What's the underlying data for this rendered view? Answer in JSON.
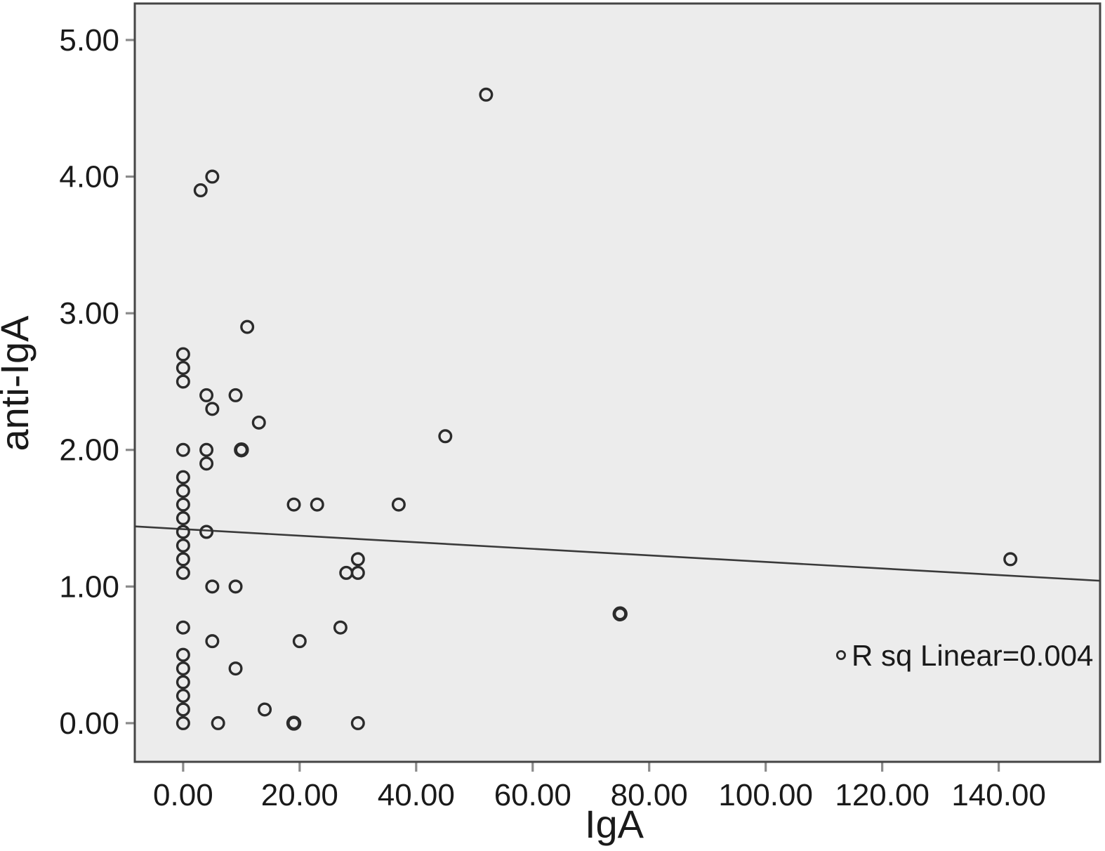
{
  "figure": {
    "kind": "SPSS-style scatterplot",
    "background": "#ffffff"
  },
  "chart_data": {
    "type": "scatter",
    "title": "",
    "xlabel": "IgA",
    "ylabel": "anti-IgA",
    "xlim": [
      -8.3,
      157.4
    ],
    "ylim": [
      -0.283,
      5.267
    ],
    "x_ticks": [
      0,
      20,
      40,
      60,
      80,
      100,
      120,
      140
    ],
    "x_tick_labels": [
      "0.00",
      "20.00",
      "40.00",
      "60.00",
      "80.00",
      "100.00",
      "120.00",
      "140.00"
    ],
    "y_ticks": [
      0,
      1,
      2,
      3,
      4,
      5
    ],
    "y_tick_labels": [
      "0.00",
      "1.00",
      "2.00",
      "3.00",
      "4.00",
      "5.00"
    ],
    "grid": false,
    "marker": "open-circle",
    "points": [
      [
        0,
        2.7
      ],
      [
        0,
        2.6
      ],
      [
        0,
        2.5
      ],
      [
        0,
        2.0
      ],
      [
        0,
        1.8
      ],
      [
        0,
        1.7
      ],
      [
        0,
        1.6
      ],
      [
        0,
        1.5
      ],
      [
        0,
        1.4
      ],
      [
        0,
        1.3
      ],
      [
        0,
        1.2
      ],
      [
        0,
        1.1
      ],
      [
        0,
        0.7
      ],
      [
        0,
        0.5
      ],
      [
        0,
        0.4
      ],
      [
        0,
        0.3
      ],
      [
        0,
        0.2
      ],
      [
        0,
        0.1
      ],
      [
        0,
        0.0
      ],
      [
        3,
        3.9
      ],
      [
        5,
        4.0
      ],
      [
        52,
        4.6
      ],
      [
        11,
        2.9
      ],
      [
        4,
        2.4
      ],
      [
        9,
        2.4
      ],
      [
        5,
        2.3
      ],
      [
        13,
        2.2
      ],
      [
        45,
        2.1
      ],
      [
        4,
        2.0
      ],
      [
        10,
        2.0,
        2
      ],
      [
        4,
        1.9
      ],
      [
        19,
        1.6
      ],
      [
        23,
        1.6
      ],
      [
        37,
        1.6
      ],
      [
        4,
        1.4
      ],
      [
        30,
        1.2
      ],
      [
        142,
        1.2
      ],
      [
        28,
        1.1
      ],
      [
        30,
        1.1
      ],
      [
        5,
        1.0
      ],
      [
        9,
        1.0
      ],
      [
        75,
        0.8,
        2
      ],
      [
        27,
        0.7
      ],
      [
        5,
        0.6
      ],
      [
        20,
        0.6
      ],
      [
        9,
        0.4
      ],
      [
        14,
        0.1
      ],
      [
        6,
        0.0
      ],
      [
        19,
        0.0,
        2
      ],
      [
        30,
        0.0
      ]
    ],
    "regression": {
      "slope": -0.0024,
      "intercept": 1.42
    },
    "legend": {
      "text": "R sq Linear=0.004",
      "position": "bottom-right"
    },
    "colors": {
      "plot_background": "#ececec",
      "marker": "#2b2b2b",
      "regression_line": "#3a3a3a",
      "border": "#454545",
      "tick": "#8a8a8a",
      "text": "#1a1a1a"
    }
  }
}
